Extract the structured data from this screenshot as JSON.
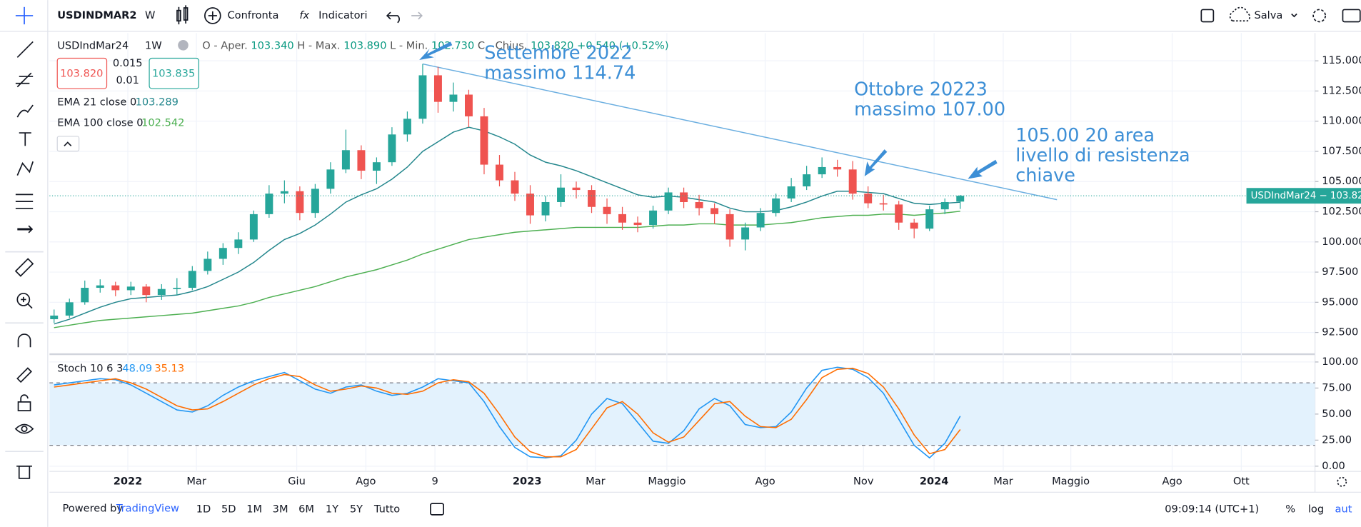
{
  "toolbar": {
    "symbol": "USDINDMAR2",
    "interval": "W",
    "compare": "Confronta",
    "indicators": "Indicatori",
    "fx": "fx",
    "save": "Salva"
  },
  "legend": {
    "symbol": "USDIndMar24",
    "interval": "1W",
    "open_label": "O - Aper.",
    "open": "103.340",
    "high_label": "H - Max.",
    "high": "103.890",
    "low_label": "L - Min.",
    "low": "102.730",
    "close_label": "C - Chius.",
    "close": "103.820",
    "change": "+0.540 (+0.52%)",
    "sell": "103.820",
    "spread": "0.015",
    "step": "0.01",
    "buy": "103.835"
  },
  "price_tag": "USDIndMar24 − 103.820",
  "annotations": [
    {
      "lines": [
        "Settembre 2022",
        "massimo 114.74"
      ]
    },
    {
      "lines": [
        "Ottobre 20223",
        "massimo 107.00"
      ]
    },
    {
      "lines": [
        "105.00 20 area",
        "livello di resistenza",
        "chiave"
      ]
    }
  ],
  "bottom_bar": {
    "powered": "Powered by",
    "brand": "TradingView",
    "ranges": [
      "1D",
      "5D",
      "1M",
      "3M",
      "6M",
      "1Y",
      "5Y",
      "Tutto"
    ],
    "clock": "09:09:14 (UTC+1)",
    "percent": "%",
    "log": "log",
    "auto": "aut"
  },
  "chart_data": [
    {
      "type": "candlestick",
      "title": "USDIndMar24",
      "up_color": "#26a69a",
      "down_color": "#ef5350",
      "grid": true,
      "categories": [
        null,
        null,
        null,
        null,
        null,
        null,
        null,
        null,
        null,
        null,
        null,
        null,
        null,
        null,
        null,
        null,
        null,
        null,
        null,
        null,
        null,
        null,
        null,
        null,
        null,
        null,
        null,
        null,
        null,
        null,
        null,
        null,
        null,
        null,
        null,
        null,
        null,
        null,
        null,
        null,
        null,
        null,
        null,
        null,
        null,
        null,
        null,
        null,
        null,
        null,
        null,
        null,
        null,
        null,
        null,
        null,
        null,
        null,
        null,
        null
      ],
      "open": [
        93.6,
        93.9,
        95.0,
        96.2,
        96.4,
        96.0,
        96.3,
        95.6,
        96.1,
        96.2,
        97.6,
        98.6,
        99.5,
        100.2,
        102.3,
        104.0,
        104.2,
        102.4,
        104.4,
        106.0,
        107.6,
        105.9,
        106.6,
        108.9,
        110.2,
        113.8,
        111.6,
        112.2,
        110.4,
        106.4,
        105.1,
        104.0,
        102.2,
        103.3,
        104.5,
        104.3,
        102.9,
        102.3,
        101.6,
        101.4,
        102.6,
        104.1,
        103.3,
        102.8,
        102.3,
        100.2,
        101.2,
        102.4,
        103.6,
        104.6,
        105.6,
        106.2,
        106.0,
        104.0,
        103.2,
        103.1,
        101.6,
        101.1,
        102.7,
        103.34
      ],
      "high": [
        94.4,
        95.3,
        96.8,
        96.9,
        96.7,
        96.7,
        96.5,
        96.5,
        97.0,
        98.0,
        99.2,
        99.9,
        100.8,
        102.6,
        104.7,
        105.1,
        104.6,
        104.8,
        106.6,
        109.3,
        108.0,
        107.0,
        109.5,
        110.8,
        114.74,
        114.5,
        113.2,
        112.6,
        111.1,
        107.2,
        105.8,
        104.7,
        103.8,
        105.6,
        105.0,
        104.7,
        103.6,
        102.9,
        102.1,
        103.0,
        104.5,
        104.5,
        103.9,
        103.2,
        102.7,
        101.6,
        102.8,
        104.0,
        105.3,
        106.3,
        107.0,
        106.8,
        106.7,
        104.6,
        103.9,
        103.4,
        101.9,
        103.0,
        103.6,
        103.89
      ],
      "low": [
        93.3,
        93.7,
        94.8,
        95.8,
        95.5,
        95.6,
        95.0,
        95.2,
        95.6,
        96.0,
        97.3,
        98.1,
        99.0,
        100.0,
        102.0,
        103.2,
        101.8,
        102.0,
        104.0,
        105.7,
        105.2,
        104.8,
        106.3,
        108.3,
        109.8,
        110.7,
        110.8,
        109.5,
        105.6,
        104.6,
        103.4,
        101.5,
        101.7,
        102.9,
        103.6,
        102.4,
        101.5,
        101.0,
        100.8,
        101.1,
        102.3,
        102.8,
        102.2,
        101.5,
        99.6,
        99.3,
        100.9,
        102.1,
        103.3,
        104.3,
        105.3,
        105.4,
        103.5,
        102.8,
        102.6,
        101.0,
        100.3,
        100.9,
        102.3,
        102.73
      ],
      "close": [
        93.9,
        95.0,
        96.2,
        96.4,
        96.0,
        96.3,
        95.6,
        96.1,
        96.2,
        97.6,
        98.6,
        99.5,
        100.2,
        102.3,
        104.0,
        104.2,
        102.4,
        104.4,
        106.0,
        107.6,
        105.9,
        106.6,
        108.9,
        110.2,
        113.8,
        111.6,
        112.2,
        110.4,
        106.4,
        105.1,
        104.0,
        102.2,
        103.3,
        104.5,
        104.3,
        102.9,
        102.3,
        101.6,
        101.4,
        102.6,
        104.1,
        103.3,
        102.8,
        102.3,
        100.2,
        101.2,
        102.4,
        103.6,
        104.6,
        105.6,
        106.2,
        106.0,
        104.0,
        103.2,
        103.1,
        101.6,
        101.1,
        102.7,
        103.3,
        103.82
      ],
      "lines": [
        {
          "name": "EMA 21 close 0",
          "color": "#22868c",
          "values": [
            93.2,
            93.6,
            94.1,
            94.6,
            95.0,
            95.3,
            95.4,
            95.5,
            95.6,
            95.9,
            96.3,
            96.9,
            97.5,
            98.3,
            99.3,
            100.2,
            100.7,
            101.4,
            102.3,
            103.3,
            103.9,
            104.4,
            105.2,
            106.2,
            107.5,
            108.3,
            109.1,
            109.5,
            109.2,
            108.7,
            108.1,
            107.2,
            106.6,
            106.3,
            105.9,
            105.4,
            104.9,
            104.4,
            103.9,
            103.7,
            103.8,
            103.7,
            103.5,
            103.3,
            102.8,
            102.5,
            102.5,
            102.6,
            102.9,
            103.3,
            103.8,
            104.2,
            104.2,
            104.1,
            104.0,
            103.6,
            103.2,
            103.1,
            103.2,
            103.289
          ]
        },
        {
          "name": "EMA 100 close 0",
          "color": "#4caf50",
          "values": [
            92.9,
            93.1,
            93.3,
            93.5,
            93.6,
            93.7,
            93.8,
            93.9,
            94.0,
            94.1,
            94.3,
            94.5,
            94.7,
            95.0,
            95.4,
            95.7,
            96.0,
            96.3,
            96.7,
            97.1,
            97.4,
            97.7,
            98.1,
            98.5,
            99.0,
            99.4,
            99.8,
            100.2,
            100.4,
            100.6,
            100.8,
            100.9,
            101.0,
            101.1,
            101.2,
            101.2,
            101.2,
            101.2,
            101.2,
            101.3,
            101.4,
            101.4,
            101.5,
            101.5,
            101.4,
            101.4,
            101.4,
            101.5,
            101.6,
            101.8,
            102.0,
            102.1,
            102.2,
            102.2,
            102.3,
            102.3,
            102.2,
            102.3,
            102.4,
            102.542
          ]
        }
      ],
      "trendline": {
        "x": [
          24,
          65.3
        ],
        "y": [
          114.74,
          103.5
        ],
        "color": "#6aaee0"
      },
      "xlim": [
        -0.3,
        82.1
      ],
      "xticks": [
        {
          "value": 4.8,
          "label": "2022"
        },
        {
          "value": 9.27,
          "label": "Mar"
        },
        {
          "value": 15.8,
          "label": "Giu"
        },
        {
          "value": 20.3,
          "label": "Ago"
        },
        {
          "value": 24.8,
          "label": "9"
        },
        {
          "value": 30.8,
          "label": "2023"
        },
        {
          "value": 35.25,
          "label": "Mar"
        },
        {
          "value": 39.9,
          "label": "Maggio"
        },
        {
          "value": 46.3,
          "label": "Ago"
        },
        {
          "value": 52.7,
          "label": "Nov"
        },
        {
          "value": 57.3,
          "label": "2024"
        },
        {
          "value": 61.8,
          "label": "Mar"
        },
        {
          "value": 66.2,
          "label": "Maggio"
        },
        {
          "value": 72.8,
          "label": "Ago"
        },
        {
          "value": 77.3,
          "label": "Ott"
        }
      ],
      "ylim": [
        90.7,
        117.3
      ],
      "yticks": [
        {
          "value": 92.5,
          "label": "92.500"
        },
        {
          "value": 95,
          "label": "95.000"
        },
        {
          "value": 97.5,
          "label": "97.500"
        },
        {
          "value": 100,
          "label": "100.000"
        },
        {
          "value": 102.5,
          "label": "102.500"
        },
        {
          "value": 105,
          "label": "105.000"
        },
        {
          "value": 107.5,
          "label": "107.500"
        },
        {
          "value": 110,
          "label": "110.000"
        },
        {
          "value": 112.5,
          "label": "112.500"
        },
        {
          "value": 115,
          "label": "115.000"
        }
      ]
    },
    {
      "type": "line",
      "title": "Stoch 10 6 3",
      "bands": [
        20,
        80
      ],
      "band_fill": "#e3f2fd",
      "grid": true,
      "series": [
        {
          "color": "#2196f3",
          "values": [
            78,
            80,
            82,
            84,
            83,
            78,
            70,
            62,
            54,
            52,
            58,
            68,
            76,
            82,
            86,
            90,
            82,
            74,
            70,
            76,
            78,
            72,
            68,
            70,
            76,
            84,
            82,
            80,
            62,
            38,
            18,
            9,
            8,
            10,
            25,
            50,
            65,
            60,
            42,
            24,
            22,
            34,
            55,
            65,
            58,
            40,
            37,
            38,
            52,
            75,
            92,
            95,
            93,
            85,
            70,
            45,
            20,
            8,
            22,
            48.09
          ]
        },
        {
          "color": "#ff6d00",
          "values": [
            76,
            78,
            80,
            82,
            84,
            80,
            74,
            66,
            58,
            54,
            55,
            62,
            70,
            78,
            84,
            88,
            86,
            78,
            72,
            74,
            77,
            75,
            70,
            69,
            72,
            80,
            83,
            81,
            70,
            50,
            28,
            14,
            9,
            9,
            16,
            36,
            56,
            62,
            50,
            32,
            23,
            28,
            44,
            60,
            62,
            48,
            38,
            37,
            45,
            64,
            85,
            93,
            94,
            89,
            76,
            55,
            30,
            12,
            16,
            35.13
          ]
        }
      ],
      "ylim": [
        -5,
        105.8
      ],
      "yticks": [
        {
          "value": 0,
          "label": "0.00"
        },
        {
          "value": 25,
          "label": "25.00"
        },
        {
          "value": 50,
          "label": "50.00"
        },
        {
          "value": 75,
          "label": "75.00"
        },
        {
          "value": 100,
          "label": "100.00"
        }
      ]
    }
  ]
}
